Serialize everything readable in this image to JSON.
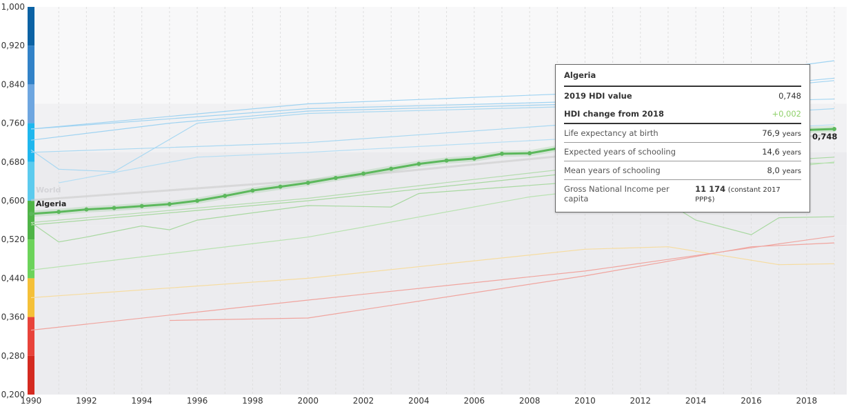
{
  "chart_data": {
    "type": "line",
    "xlim": [
      1990,
      2019
    ],
    "ylim": [
      0.2,
      1.0
    ],
    "x_ticks": [
      "1990",
      "1992",
      "1994",
      "1996",
      "1998",
      "2000",
      "2002",
      "2004",
      "2006",
      "2008",
      "2010",
      "2012",
      "2014",
      "2016",
      "2018"
    ],
    "y_ticks": [
      "0,200",
      "0,280",
      "0,360",
      "0,440",
      "0,520",
      "0,600",
      "0,680",
      "0,760",
      "0,840",
      "0,920",
      "1,000"
    ],
    "grid": "vertical dashed per year",
    "color_scale": [
      {
        "from": 0.92,
        "to": 1.0,
        "color": "#0b62a4"
      },
      {
        "from": 0.84,
        "to": 0.92,
        "color": "#3282c8"
      },
      {
        "from": 0.76,
        "to": 0.84,
        "color": "#6ea6e0"
      },
      {
        "from": 0.68,
        "to": 0.76,
        "color": "#1fb7ee"
      },
      {
        "from": 0.6,
        "to": 0.68,
        "color": "#5ccbee"
      },
      {
        "from": 0.52,
        "to": 0.6,
        "color": "#4fb447"
      },
      {
        "from": 0.44,
        "to": 0.52,
        "color": "#6cd35a"
      },
      {
        "from": 0.36,
        "to": 0.44,
        "color": "#f5c038"
      },
      {
        "from": 0.28,
        "to": 0.36,
        "color": "#e8433a"
      },
      {
        "from": 0.2,
        "to": 0.28,
        "color": "#d42a20"
      }
    ],
    "highlight": {
      "name": "Algeria",
      "color": "#5cb85c",
      "end_label": "0,748",
      "x": [
        1990,
        1991,
        1992,
        1993,
        1994,
        1995,
        1996,
        1997,
        1998,
        1999,
        2000,
        2001,
        2002,
        2003,
        2004,
        2005,
        2006,
        2007,
        2008,
        2009,
        2010,
        2011,
        2012,
        2013,
        2014,
        2015,
        2016,
        2017,
        2018,
        2019
      ],
      "y": [
        0.573,
        0.577,
        0.582,
        0.585,
        0.589,
        0.593,
        0.6,
        0.61,
        0.621,
        0.629,
        0.637,
        0.647,
        0.656,
        0.666,
        0.676,
        0.683,
        0.687,
        0.697,
        0.698,
        0.708,
        0.721,
        0.728,
        0.732,
        0.737,
        0.737,
        0.74,
        0.743,
        0.745,
        0.746,
        0.748
      ]
    },
    "reference": {
      "name": "World",
      "color": "#cccccc",
      "x": [
        1990,
        2000,
        2010,
        2019
      ],
      "y": [
        0.601,
        0.642,
        0.697,
        0.737
      ]
    },
    "series": [
      {
        "color": "#9fd3f2",
        "x": [
          1990,
          2000,
          2010,
          2019
        ],
        "y": [
          0.748,
          0.8,
          0.822,
          0.889
        ]
      },
      {
        "color": "#9fd3f2",
        "x": [
          1990,
          2000,
          2010,
          2019
        ],
        "y": [
          0.748,
          0.79,
          0.805,
          0.853
        ]
      },
      {
        "color": "#9fd3f2",
        "x": [
          1990,
          1995,
          2000,
          2010,
          2019
        ],
        "y": [
          0.725,
          0.76,
          0.785,
          0.8,
          0.848
        ]
      },
      {
        "color": "#a9d8f2",
        "x": [
          1990,
          1991,
          1993,
          1996,
          2000,
          2010,
          2019
        ],
        "y": [
          0.705,
          0.665,
          0.66,
          0.76,
          0.78,
          0.795,
          0.81
        ]
      },
      {
        "color": "#a9d8f2",
        "x": [
          1990,
          2000,
          2010,
          2019
        ],
        "y": [
          0.7,
          0.72,
          0.76,
          0.79
        ]
      },
      {
        "color": "#b5def4",
        "x": [
          1991,
          1996,
          2000,
          2010,
          2019
        ],
        "y": [
          0.637,
          0.69,
          0.7,
          0.73,
          0.757
        ]
      },
      {
        "color": "#a8d8a0",
        "x": [
          1990,
          1991,
          1992,
          1994,
          1995,
          1996,
          2000,
          2003,
          2004,
          2010,
          2012,
          2013,
          2014,
          2016,
          2017,
          2019
        ],
        "y": [
          0.555,
          0.515,
          0.525,
          0.548,
          0.54,
          0.56,
          0.59,
          0.587,
          0.615,
          0.64,
          0.65,
          0.595,
          0.56,
          0.53,
          0.565,
          0.567
        ]
      },
      {
        "color": "#a8d8a0",
        "x": [
          1990,
          2000,
          2010,
          2019
        ],
        "y": [
          0.55,
          0.6,
          0.66,
          0.69
        ]
      },
      {
        "color": "#b4dcae",
        "x": [
          1990,
          2000,
          2010,
          2019
        ],
        "y": [
          0.555,
          0.605,
          0.67,
          0.678
        ]
      },
      {
        "color": "#b8e2b0",
        "x": [
          1990,
          2000,
          2008,
          2019
        ],
        "y": [
          0.457,
          0.525,
          0.608,
          0.68
        ]
      },
      {
        "color": "#f6dca0",
        "x": [
          1990,
          2000,
          2010,
          2013,
          2017,
          2019
        ],
        "y": [
          0.4,
          0.44,
          0.5,
          0.505,
          0.468,
          0.47
        ]
      },
      {
        "color": "#f0a49e",
        "x": [
          1990,
          2000,
          2010,
          2019
        ],
        "y": [
          0.333,
          0.395,
          0.455,
          0.527
        ]
      },
      {
        "color": "#f0a49e",
        "x": [
          1995,
          2000,
          2010,
          2016,
          2019
        ],
        "y": [
          0.353,
          0.358,
          0.445,
          0.505,
          0.513
        ]
      }
    ]
  },
  "tooltip": {
    "country": "Algeria",
    "hdi_label": "2019 HDI value",
    "hdi_value": "0,748",
    "change_label": "HDI change from 2018",
    "change_value": "+0,002",
    "change_color": "#8fd16a",
    "rows": [
      {
        "label": "Life expectancy at birth",
        "value": "76,9",
        "unit": "years"
      },
      {
        "label": "Expected years of schooling",
        "value": "14,6",
        "unit": "years"
      },
      {
        "label": "Mean years of schooling",
        "value": "8,0",
        "unit": "years"
      },
      {
        "label": "Gross National Income per capita",
        "value": "11 174",
        "unit": "(constant 2017 PPP$)"
      }
    ]
  }
}
